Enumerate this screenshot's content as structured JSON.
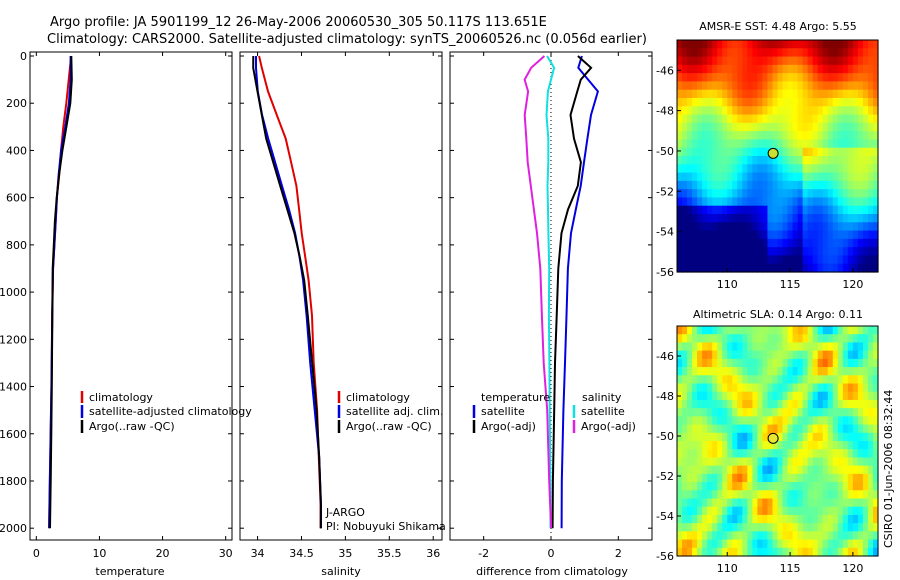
{
  "header": {
    "line1": "Argo profile: JA 5901199_12 26-May-2006 20060530_305 50.117S 113.651E",
    "line2": "Climatology: CARS2000. Satellite-adjusted climatology: synTS_20060526.nc (0.056d earlier)"
  },
  "colors": {
    "climatology": "#e00000",
    "satellite": "#0000e0",
    "argo": "#000000",
    "argo_adj_sal": "#e020e0",
    "satellite_sal": "#10e0e0"
  },
  "panels": {
    "temperature": {
      "xlabel": "temperature",
      "legend": [
        "climatology",
        "satellite-adjusted climatology",
        "Argo(..raw -QC)"
      ]
    },
    "salinity": {
      "xlabel": "salinity",
      "legend": [
        "climatology",
        "satellite adj. clim.",
        "Argo(..raw -QC)"
      ],
      "note1": "J-ARGO",
      "note2": "PI: Nobuyuki Shikama"
    },
    "difference": {
      "xlabel": "difference from climatology",
      "legend_left_title": "temperature",
      "legend_right_title": "salinity",
      "legend_left": [
        "satellite",
        "Argo(-adj)"
      ],
      "legend_right": [
        "satellite",
        "Argo(-adj)"
      ]
    },
    "sst_map": {
      "title": "AMSR-E SST: 4.48 Argo: 5.55"
    },
    "sla_map": {
      "title": "Altimetric SLA: 0.14 Argo: 0.11"
    },
    "stamp": "CSIRO 01-Jun-2006 08:32:44"
  },
  "chart_data": [
    {
      "type": "line",
      "name_key": "temperature",
      "xlim": [
        -1,
        31
      ],
      "ylim": [
        0,
        2050
      ],
      "y_reversed": true,
      "xticks": [
        0,
        10,
        20,
        30
      ],
      "yticks": [
        0,
        200,
        400,
        600,
        800,
        1000,
        1200,
        1400,
        1600,
        1800,
        2000
      ],
      "series": [
        {
          "name": "climatology",
          "color": "#e00000",
          "x": [
            5.6,
            5.2,
            4.8,
            4.3,
            3.9,
            3.6,
            3.2,
            3.0,
            2.8,
            2.6,
            2.5,
            2.4,
            2.3,
            2.2,
            2.1
          ],
          "y": [
            0,
            100,
            200,
            300,
            400,
            500,
            600,
            700,
            800,
            900,
            1100,
            1400,
            1600,
            1800,
            2000
          ]
        },
        {
          "name": "satellite-adjusted climatology",
          "color": "#0000e0",
          "x": [
            5.5,
            5.5,
            5.2,
            4.6,
            3.9,
            3.5,
            3.2,
            3.0,
            2.8,
            2.6,
            2.5,
            2.4,
            2.3,
            2.2,
            2.1
          ],
          "y": [
            0,
            100,
            200,
            300,
            400,
            500,
            600,
            700,
            800,
            900,
            1100,
            1400,
            1600,
            1800,
            2000
          ]
        },
        {
          "name": "Argo(..raw -QC)",
          "color": "#000000",
          "x": [
            5.5,
            5.6,
            5.4,
            4.8,
            4.2,
            3.7,
            3.3,
            3.0,
            2.8,
            2.6,
            2.5,
            2.4,
            2.3,
            2.2,
            2.1
          ],
          "y": [
            0,
            100,
            200,
            300,
            400,
            500,
            600,
            700,
            800,
            900,
            1100,
            1400,
            1600,
            1800,
            2000
          ]
        }
      ]
    },
    {
      "type": "line",
      "name_key": "salinity",
      "xlim": [
        33.8,
        36.1
      ],
      "ylim": [
        0,
        2050
      ],
      "y_reversed": true,
      "xticks": [
        34,
        34.5,
        35,
        35.5,
        36
      ],
      "series": [
        {
          "name": "climatology",
          "color": "#e00000",
          "x": [
            34.02,
            34.05,
            34.12,
            34.22,
            34.32,
            34.38,
            34.44,
            34.47,
            34.5,
            34.54,
            34.58,
            34.62,
            34.64,
            34.68,
            34.7,
            34.72,
            34.72
          ],
          "y": [
            0,
            50,
            150,
            250,
            350,
            450,
            550,
            650,
            750,
            850,
            950,
            1100,
            1300,
            1500,
            1700,
            1900,
            2000
          ]
        },
        {
          "name": "satellite adj. clim.",
          "color": "#0000e0",
          "x": [
            33.98,
            33.98,
            34.0,
            34.05,
            34.12,
            34.2,
            34.28,
            34.36,
            34.43,
            34.48,
            34.52,
            34.56,
            34.6,
            34.65,
            34.7,
            34.72,
            34.72
          ],
          "y": [
            0,
            50,
            150,
            250,
            350,
            450,
            550,
            650,
            750,
            850,
            950,
            1100,
            1300,
            1500,
            1700,
            1900,
            2000
          ]
        },
        {
          "name": "Argo(..raw -QC)",
          "color": "#000000",
          "x": [
            33.95,
            33.95,
            34.0,
            34.05,
            34.1,
            34.18,
            34.26,
            34.34,
            34.42,
            34.48,
            34.53,
            34.57,
            34.62,
            34.67,
            34.7,
            34.72,
            34.72
          ],
          "y": [
            0,
            50,
            150,
            250,
            350,
            450,
            550,
            650,
            750,
            850,
            950,
            1100,
            1300,
            1500,
            1700,
            1900,
            2000
          ]
        }
      ]
    },
    {
      "type": "line",
      "name_key": "difference",
      "xlim": [
        -3,
        3
      ],
      "ylim": [
        0,
        2050
      ],
      "y_reversed": true,
      "xticks": [
        -2,
        0,
        2
      ],
      "series": [
        {
          "name": "temperature satellite",
          "color": "#0000e0",
          "x": [
            0.9,
            0.8,
            1.1,
            1.4,
            1.2,
            1.1,
            1.0,
            0.9,
            0.75,
            0.6,
            0.5,
            0.45,
            0.4,
            0.35,
            0.3,
            0.3
          ],
          "y": [
            0,
            50,
            100,
            150,
            250,
            350,
            450,
            550,
            650,
            750,
            900,
            1100,
            1300,
            1500,
            1800,
            2000
          ]
        },
        {
          "name": "temperature Argo(-adj)",
          "color": "#000000",
          "x": [
            0.8,
            1.2,
            0.9,
            0.8,
            0.6,
            0.7,
            0.9,
            0.8,
            0.5,
            0.3,
            0.2,
            0.15,
            0.1,
            0.08,
            0.05,
            0.05
          ],
          "y": [
            0,
            50,
            100,
            150,
            250,
            350,
            450,
            550,
            650,
            750,
            900,
            1100,
            1300,
            1500,
            1800,
            2000
          ]
        },
        {
          "name": "salinity satellite",
          "color": "#10e0e0",
          "x": [
            -0.1,
            0.1,
            0.0,
            -0.1,
            -0.15,
            -0.1,
            -0.1,
            -0.12,
            -0.1,
            -0.08,
            -0.05,
            -0.05,
            -0.03,
            -0.02,
            0.0,
            0.0
          ],
          "y": [
            0,
            50,
            100,
            150,
            250,
            350,
            450,
            550,
            650,
            750,
            900,
            1100,
            1300,
            1500,
            1800,
            2000
          ]
        },
        {
          "name": "salinity Argo(-adj)",
          "color": "#e020e0",
          "x": [
            -0.2,
            -0.6,
            -0.8,
            -0.7,
            -0.8,
            -0.75,
            -0.7,
            -0.6,
            -0.5,
            -0.4,
            -0.3,
            -0.25,
            -0.2,
            -0.1,
            -0.05,
            0.0
          ],
          "y": [
            0,
            50,
            100,
            150,
            250,
            350,
            450,
            550,
            650,
            750,
            900,
            1100,
            1300,
            1500,
            1800,
            2000
          ]
        }
      ]
    },
    {
      "type": "heatmap",
      "name_key": "sst_map",
      "xlim": [
        106,
        122
      ],
      "ylim": [
        -56,
        -44.5
      ],
      "xticks": [
        110,
        115,
        120
      ],
      "yticks": [
        -46,
        -48,
        -50,
        -52,
        -54,
        -56
      ],
      "marker": [
        113.651,
        -50.117
      ]
    },
    {
      "type": "heatmap",
      "name_key": "sla_map",
      "xlim": [
        106,
        122
      ],
      "ylim": [
        -56,
        -44.5
      ],
      "xticks": [
        110,
        115,
        120
      ],
      "yticks": [
        -46,
        -48,
        -50,
        -52,
        -54,
        -56
      ],
      "marker": [
        113.651,
        -50.117
      ]
    }
  ]
}
